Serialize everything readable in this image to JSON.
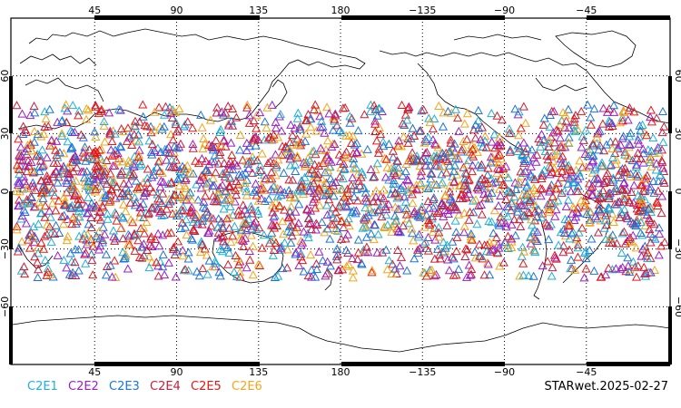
{
  "map": {
    "top_lon_ticks": [
      "45",
      "90",
      "135",
      "180",
      "−135",
      "−90",
      "−45"
    ],
    "bottom_lon_ticks": [
      "45",
      "90",
      "135",
      "180",
      "−135",
      "−90",
      "−45"
    ],
    "lat_ticks": [
      "60",
      "30",
      "0",
      "−30",
      "−60"
    ],
    "projection_center_lon": 180,
    "lat_range": [
      -90,
      90
    ],
    "gridlines": true
  },
  "legend": {
    "items": [
      {
        "label": "C2E1",
        "color": "#1fb0d6"
      },
      {
        "label": "C2E2",
        "color": "#9a1fc8"
      },
      {
        "label": "C2E3",
        "color": "#1c74d8"
      },
      {
        "label": "C2E4",
        "color": "#c71f3a"
      },
      {
        "label": "C2E5",
        "color": "#e21818"
      },
      {
        "label": "C2E6",
        "color": "#f2a51a"
      }
    ]
  },
  "footer": {
    "stamp": "STARwet.2025-02-27"
  },
  "chart_data": {
    "type": "scatter",
    "marker": "triangle",
    "observation_lat_range": [
      -45,
      45
    ],
    "observation_lon_range": [
      0,
      360
    ],
    "series": [
      {
        "name": "C2E1",
        "color": "#1fb0d6"
      },
      {
        "name": "C2E2",
        "color": "#9a1fc8"
      },
      {
        "name": "C2E3",
        "color": "#1c74d8"
      },
      {
        "name": "C2E4",
        "color": "#c71f3a"
      },
      {
        "name": "C2E5",
        "color": "#e21818"
      },
      {
        "name": "C2E6",
        "color": "#f2a51a"
      }
    ]
  }
}
